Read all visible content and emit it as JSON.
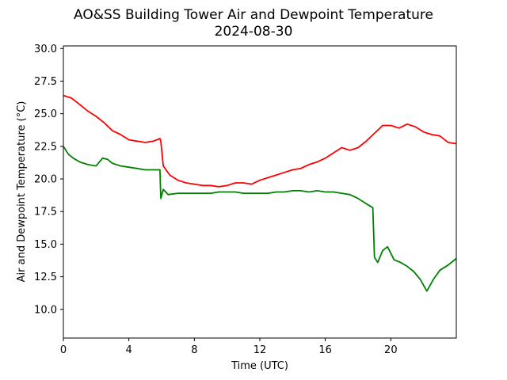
{
  "chart_data": {
    "type": "line",
    "title": "AO&SS Building Tower Air and Dewpoint Temperature",
    "subtitle": "2024-08-30",
    "xlabel": "Time (UTC)",
    "ylabel": "Air and Dewpoint Temperature (°C)",
    "xlim": [
      0,
      24
    ],
    "ylim": [
      7.8,
      30.2
    ],
    "xticks": [
      0,
      4,
      8,
      12,
      16,
      20
    ],
    "xtick_labels": [
      "0",
      "4",
      "8",
      "12",
      "16",
      "20"
    ],
    "yticks": [
      10.0,
      12.5,
      15.0,
      17.5,
      20.0,
      22.5,
      25.0,
      27.5,
      30.0
    ],
    "ytick_labels": [
      "10.0",
      "12.5",
      "15.0",
      "17.5",
      "20.0",
      "22.5",
      "25.0",
      "27.5",
      "30.0"
    ],
    "grid": false,
    "series": [
      {
        "color": "#ff0000",
        "x": [
          0,
          0.5,
          1,
          1.5,
          2,
          2.5,
          3,
          3.5,
          4,
          4.5,
          5,
          5.5,
          5.9,
          5.95,
          6.1,
          6.5,
          7,
          7.5,
          8,
          8.5,
          9,
          9.5,
          10,
          10.5,
          11,
          11.5,
          12,
          12.5,
          13,
          13.5,
          14,
          14.5,
          15,
          15.5,
          16,
          16.5,
          17,
          17.5,
          18,
          18.5,
          19,
          19.5,
          20,
          20.5,
          21,
          21.5,
          22,
          22.5,
          23,
          23.5,
          24
        ],
        "y": [
          26.4,
          26.2,
          25.7,
          25.2,
          24.8,
          24.3,
          23.7,
          23.4,
          23.0,
          22.9,
          22.8,
          22.9,
          23.1,
          22.9,
          21.0,
          20.3,
          19.9,
          19.7,
          19.6,
          19.5,
          19.5,
          19.4,
          19.5,
          19.7,
          19.7,
          19.6,
          19.9,
          20.1,
          20.3,
          20.5,
          20.7,
          20.8,
          21.1,
          21.3,
          21.6,
          22.0,
          22.4,
          22.2,
          22.4,
          22.9,
          23.5,
          24.1,
          24.1,
          23.9,
          24.2,
          24.0,
          23.6,
          23.4,
          23.3,
          22.8,
          22.7
        ]
      },
      {
        "color": "#008000",
        "x": [
          0,
          0.3,
          0.6,
          1,
          1.5,
          2,
          2.4,
          2.7,
          3,
          3.5,
          4,
          4.5,
          5,
          5.5,
          5.9,
          5.95,
          6.1,
          6.4,
          7,
          7.5,
          8,
          8.5,
          9,
          9.5,
          10,
          10.5,
          11,
          11.5,
          12,
          12.5,
          13,
          13.5,
          14,
          14.5,
          15,
          15.5,
          16,
          16.5,
          17,
          17.5,
          18,
          18.5,
          18.9,
          19.0,
          19.2,
          19.5,
          19.8,
          20.2,
          20.6,
          21.0,
          21.4,
          21.8,
          22.2,
          22.6,
          23.0,
          23.5,
          24
        ],
        "y": [
          22.5,
          21.9,
          21.6,
          21.3,
          21.1,
          21.0,
          21.6,
          21.5,
          21.2,
          21.0,
          20.9,
          20.8,
          20.7,
          20.7,
          20.7,
          18.5,
          19.2,
          18.8,
          18.9,
          18.9,
          18.9,
          18.9,
          18.9,
          19.0,
          19.0,
          19.0,
          18.9,
          18.9,
          18.9,
          18.9,
          19.0,
          19.0,
          19.1,
          19.1,
          19.0,
          19.1,
          19.0,
          19.0,
          18.9,
          18.8,
          18.5,
          18.1,
          17.8,
          14.0,
          13.6,
          14.5,
          14.8,
          13.8,
          13.6,
          13.3,
          12.9,
          12.3,
          11.4,
          12.3,
          13.0,
          13.4,
          13.9
        ]
      }
    ]
  }
}
